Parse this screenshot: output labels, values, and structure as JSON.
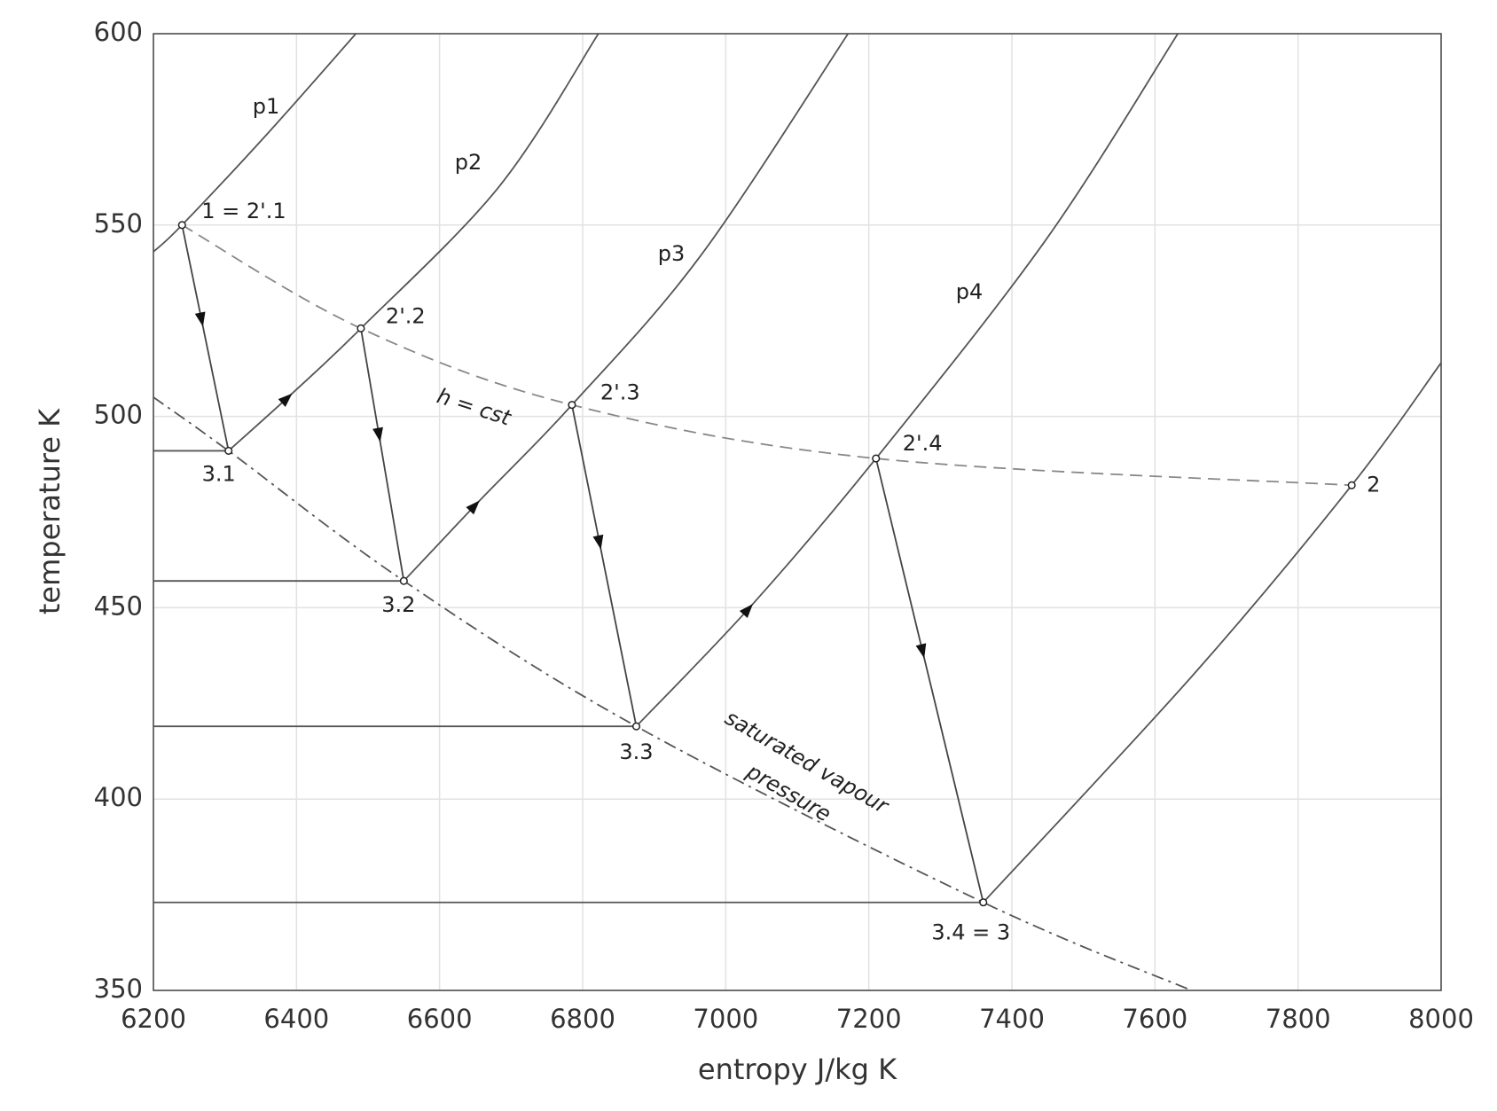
{
  "chart_data": {
    "type": "line",
    "x_label": "entropy J/kg K",
    "y_label": "temperature K",
    "xlim": [
      6200,
      8000
    ],
    "ylim": [
      350,
      600
    ],
    "xticks": [
      6200,
      6400,
      6600,
      6800,
      7000,
      7200,
      7400,
      7600,
      7800,
      8000
    ],
    "yticks": [
      350,
      400,
      450,
      500,
      550,
      600
    ],
    "grid": true,
    "series": [
      {
        "name": "p1",
        "color": "#555555",
        "dash": "solid",
        "x": [
          6200,
          6240,
          6360,
          6483
        ],
        "values": [
          543,
          550,
          574,
          600
        ]
      },
      {
        "name": "p2",
        "color": "#555555",
        "dash": "solid",
        "arrow": true,
        "x": [
          6305,
          6394,
          6490,
          6683,
          6822
        ],
        "values": [
          491,
          506,
          523,
          560,
          600
        ]
      },
      {
        "name": "p3",
        "color": "#555555",
        "dash": "solid",
        "arrow": true,
        "x": [
          6550,
          6656,
          6785,
          6965,
          7171
        ],
        "values": [
          457,
          478,
          503,
          542,
          600
        ]
      },
      {
        "name": "p4",
        "color": "#555555",
        "dash": "solid",
        "arrow": true,
        "x": [
          6875,
          7038,
          7210,
          7447,
          7632
        ],
        "values": [
          419,
          451,
          489,
          546,
          600
        ]
      },
      {
        "color": "#555555",
        "dash": "solid",
        "x": [
          7360,
          7656,
          7875,
          8000
        ],
        "values": [
          373,
          433,
          482,
          514
        ]
      },
      {
        "name": "h = cst",
        "color": "#888888",
        "dash": "dashed",
        "x": [
          6240,
          6490,
          6785,
          7210,
          7875
        ],
        "values": [
          550,
          523,
          503,
          489,
          482
        ]
      },
      {
        "color": "#555555",
        "dash": "dashdot",
        "x": [
          6200,
          6305,
          6550,
          6875,
          7360,
          7651
        ],
        "values": [
          505,
          491,
          457,
          419,
          373,
          350
        ]
      },
      {
        "color": "#444444",
        "dash": "solid",
        "arrow": true,
        "x": [
          6240,
          6305
        ],
        "values": [
          550,
          491
        ]
      },
      {
        "color": "#444444",
        "dash": "solid",
        "arrow": true,
        "x": [
          6490,
          6550
        ],
        "values": [
          523,
          457
        ]
      },
      {
        "color": "#444444",
        "dash": "solid",
        "arrow": true,
        "x": [
          6785,
          6875
        ],
        "values": [
          503,
          419
        ]
      },
      {
        "color": "#444444",
        "dash": "solid",
        "arrow": true,
        "x": [
          7210,
          7360
        ],
        "values": [
          489,
          373
        ]
      },
      {
        "color": "#555555",
        "dash": "solid",
        "x": [
          6200,
          6305
        ],
        "values": [
          491,
          491
        ]
      },
      {
        "color": "#555555",
        "dash": "solid",
        "x": [
          6200,
          6550
        ],
        "values": [
          457,
          457
        ]
      },
      {
        "color": "#555555",
        "dash": "solid",
        "x": [
          6200,
          6875
        ],
        "values": [
          419,
          419
        ]
      },
      {
        "color": "#555555",
        "dash": "solid",
        "x": [
          6200,
          7360
        ],
        "values": [
          373,
          373
        ]
      }
    ],
    "points": [
      {
        "label": "1 = 2'.1",
        "x": 6240,
        "y": 550
      },
      {
        "label": "2'.2",
        "x": 6490,
        "y": 523
      },
      {
        "label": "2'.3",
        "x": 6785,
        "y": 503
      },
      {
        "label": "2'.4",
        "x": 7210,
        "y": 489
      },
      {
        "label": "2",
        "x": 7875,
        "y": 482
      },
      {
        "label": "3.1",
        "x": 6305,
        "y": 491
      },
      {
        "label": "3.2",
        "x": 6550,
        "y": 457
      },
      {
        "label": "3.3",
        "x": 6875,
        "y": 419
      },
      {
        "label": "3.4 = 3",
        "x": 7360,
        "y": 373
      }
    ],
    "annotations": [
      "saturated vapour",
      "pressure"
    ]
  }
}
